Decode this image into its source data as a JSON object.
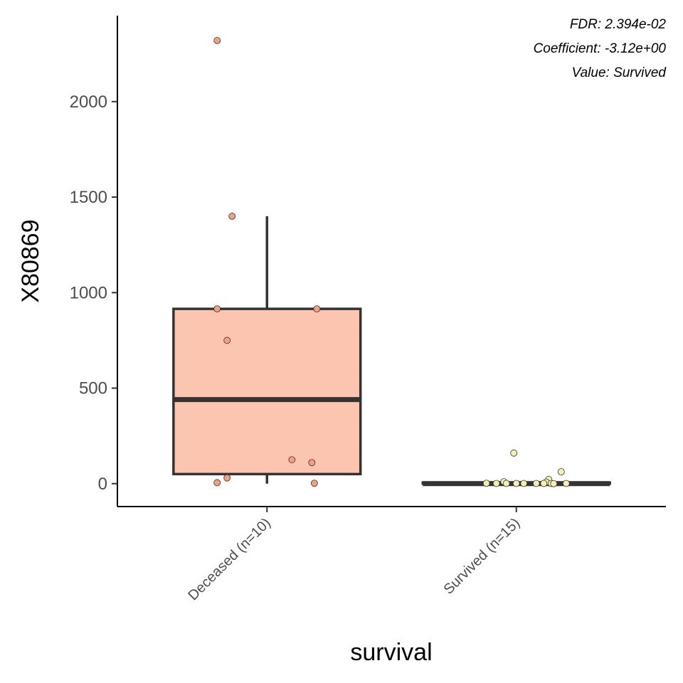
{
  "chart_data": {
    "type": "boxplot",
    "xlabel": "survival",
    "ylabel": "X80869",
    "ylim": [
      -120,
      2450
    ],
    "yticks": [
      0,
      500,
      1000,
      1500,
      2000
    ],
    "grid": false,
    "legend": "none",
    "annotations": [
      "FDR: 2.394e-02",
      "Coefficient: -3.12e+00",
      "Value: Survived"
    ],
    "categories": [
      "Deceased (n=10)",
      "Survived (n=15)"
    ],
    "groups": [
      {
        "label": "Deceased (n=10)",
        "fill_color": "#fcc5b0",
        "point_color": "#f4a07e",
        "box": {
          "q1": 50,
          "median": 440,
          "q3": 915,
          "whisker_low": 0,
          "whisker_high": 1400
        },
        "points": [
          {
            "jitter": -0.2,
            "y": 2320
          },
          {
            "jitter": -0.14,
            "y": 1400
          },
          {
            "jitter": -0.2,
            "y": 915
          },
          {
            "jitter": 0.2,
            "y": 915
          },
          {
            "jitter": -0.16,
            "y": 750
          },
          {
            "jitter": 0.1,
            "y": 125
          },
          {
            "jitter": 0.18,
            "y": 110
          },
          {
            "jitter": -0.16,
            "y": 30
          },
          {
            "jitter": -0.2,
            "y": 5
          },
          {
            "jitter": 0.19,
            "y": 2
          }
        ]
      },
      {
        "label": "Survived (n=15)",
        "fill_color": "#fcc5b0",
        "point_color": "#f3f0b0",
        "box": {
          "q1": 0,
          "median": 0,
          "q3": 6,
          "whisker_low": 0,
          "whisker_high": 6
        },
        "points": [
          {
            "jitter": -0.01,
            "y": 160
          },
          {
            "jitter": 0.18,
            "y": 62
          },
          {
            "jitter": 0.13,
            "y": 22
          },
          {
            "jitter": -0.05,
            "y": 10
          },
          {
            "jitter": 0.12,
            "y": 8
          },
          {
            "jitter": -0.12,
            "y": 2
          },
          {
            "jitter": -0.08,
            "y": 1
          },
          {
            "jitter": -0.04,
            "y": 1
          },
          {
            "jitter": 0.0,
            "y": 1
          },
          {
            "jitter": 0.03,
            "y": 1
          },
          {
            "jitter": 0.08,
            "y": 1
          },
          {
            "jitter": 0.11,
            "y": 1
          },
          {
            "jitter": 0.14,
            "y": 1
          },
          {
            "jitter": 0.2,
            "y": 1
          },
          {
            "jitter": 0.15,
            "y": 0
          }
        ]
      }
    ]
  }
}
